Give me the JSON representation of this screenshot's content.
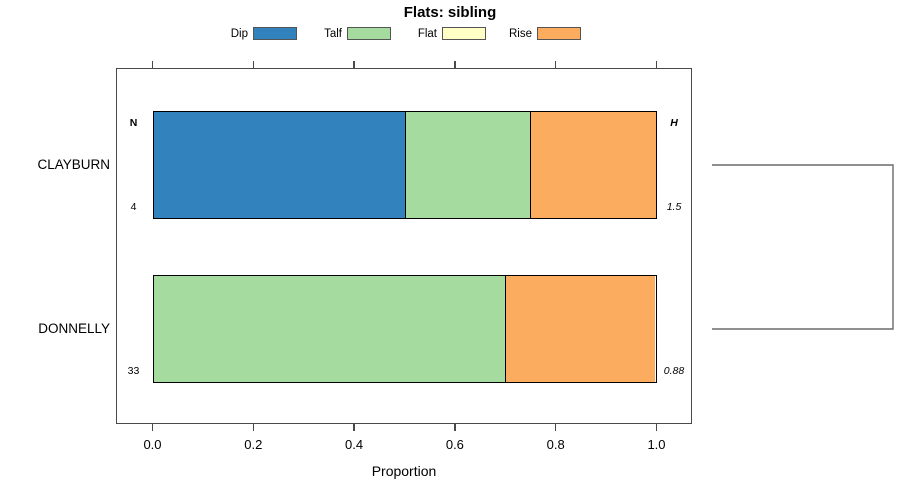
{
  "title": "Flats: sibling",
  "legend": {
    "items": [
      {
        "label": "Dip",
        "color": "#3182bd"
      },
      {
        "label": "Talf",
        "color": "#a6dba0"
      },
      {
        "label": "Flat",
        "color": "#ffffc6"
      },
      {
        "label": "Rise",
        "color": "#fbac5e"
      }
    ]
  },
  "axis": {
    "x_label": "Proportion",
    "x_ticks": [
      "0.0",
      "0.2",
      "0.4",
      "0.6",
      "0.8",
      "1.0"
    ],
    "x_range": [
      0,
      1
    ]
  },
  "chart_data": {
    "type": "bar",
    "orientation": "horizontal",
    "stacked": true,
    "title": "Flats: sibling",
    "xlabel": "Proportion",
    "xlim": [
      0,
      1
    ],
    "grid": false,
    "legend_position": "top",
    "categories": [
      "CLAYBURN",
      "DONNELLY"
    ],
    "left_column_header": "N",
    "right_column_header": "H",
    "n_values": [
      "4",
      "33"
    ],
    "h_values": [
      "1.5",
      "0.88"
    ],
    "series": [
      {
        "name": "Dip",
        "color": "#3182bd",
        "values": [
          0.5,
          0.0
        ]
      },
      {
        "name": "Talf",
        "color": "#a6dba0",
        "values": [
          0.25,
          0.7
        ]
      },
      {
        "name": "Flat",
        "color": "#ffffc6",
        "values": [
          0.0,
          0.0
        ]
      },
      {
        "name": "Rise",
        "color": "#fbac5e",
        "values": [
          0.25,
          0.3
        ]
      }
    ],
    "dendrogram": {
      "present": true,
      "joins": [
        "CLAYBURN",
        "DONNELLY"
      ]
    }
  }
}
